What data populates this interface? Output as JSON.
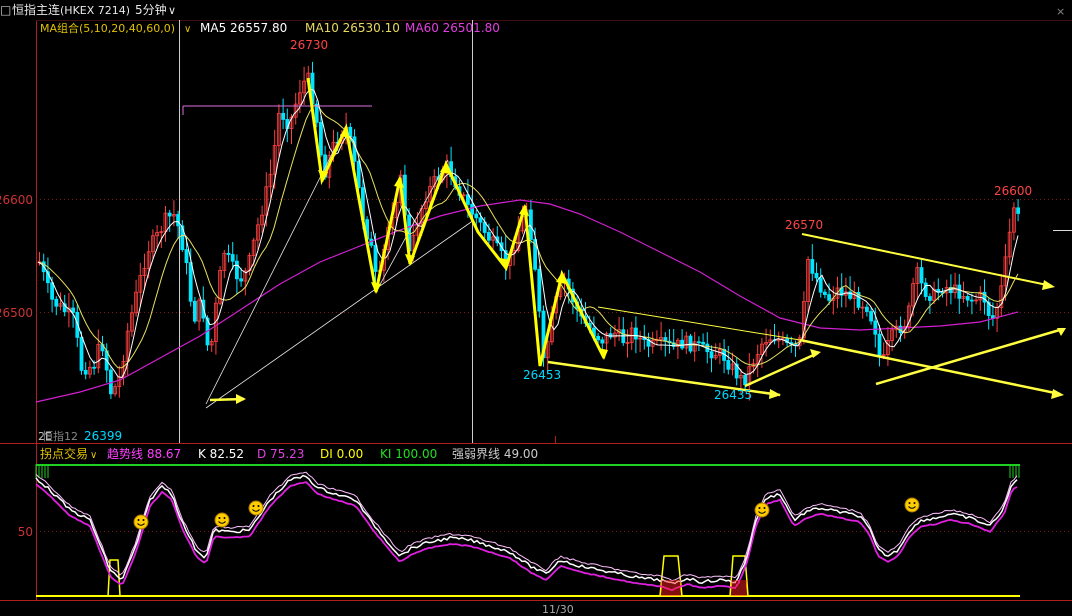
{
  "header": {
    "symbol": "恒指主连",
    "code": "(HKEX 7214)",
    "period": "5分钟"
  },
  "ma_row": {
    "group": "MA组合(5,10,20,40,60,0)",
    "ma5": "MA5 26557.80",
    "ma10": "MA10 26530.10",
    "ma60": "MA60 26501.80"
  },
  "price_axis": {
    "ticks": [
      "26600",
      "26500"
    ],
    "ylim": [
      26385,
      26750
    ]
  },
  "annotations": {
    "high1": "26730",
    "low1": "26399",
    "low2": "26453",
    "low3": "26435",
    "mid_high": "26570",
    "last_high": "26600"
  },
  "sub_header": {
    "indicator": "拐点交易",
    "trend": "趋势线 88.67",
    "k": "K 82.52",
    "d": "D 75.23",
    "di": "DI 0.00",
    "ki": "KI 100.00",
    "strength": "强弱界线 49.00"
  },
  "sub_axis": {
    "tick": "50"
  },
  "overlap_label": "恒指12",
  "overlap_label2": "2E",
  "date_label": "11/30",
  "colors": {
    "up": "#ff4040",
    "down": "#00e5ff",
    "ma5": "#ffffff",
    "ma10": "#ffff66",
    "ma60": "#e040e0",
    "annot": "#ffff00"
  },
  "chart_data": {
    "type": "line",
    "title": "恒指主连(HKEX 7214) 5分钟",
    "x_label": "11/30",
    "series": [
      {
        "name": "MA5",
        "last": 26557.8
      },
      {
        "name": "MA10",
        "last": 26530.1
      },
      {
        "name": "MA60",
        "last": 26501.8
      }
    ],
    "price_points": [
      {
        "label": "26730",
        "value": 26730
      },
      {
        "label": "26399",
        "value": 26399
      },
      {
        "label": "26453",
        "value": 26453
      },
      {
        "label": "26435",
        "value": 26435
      },
      {
        "label": "26570",
        "value": 26570
      },
      {
        "label": "26600",
        "value": 26600
      }
    ],
    "ylim": [
      26385,
      26750
    ],
    "yticks": [
      26600,
      26500
    ],
    "sub_chart": {
      "name": "拐点交易",
      "trend": 88.67,
      "K": 82.52,
      "D": 75.23,
      "DI": 0.0,
      "KI": 100.0,
      "strength_line": 49.0
    }
  }
}
